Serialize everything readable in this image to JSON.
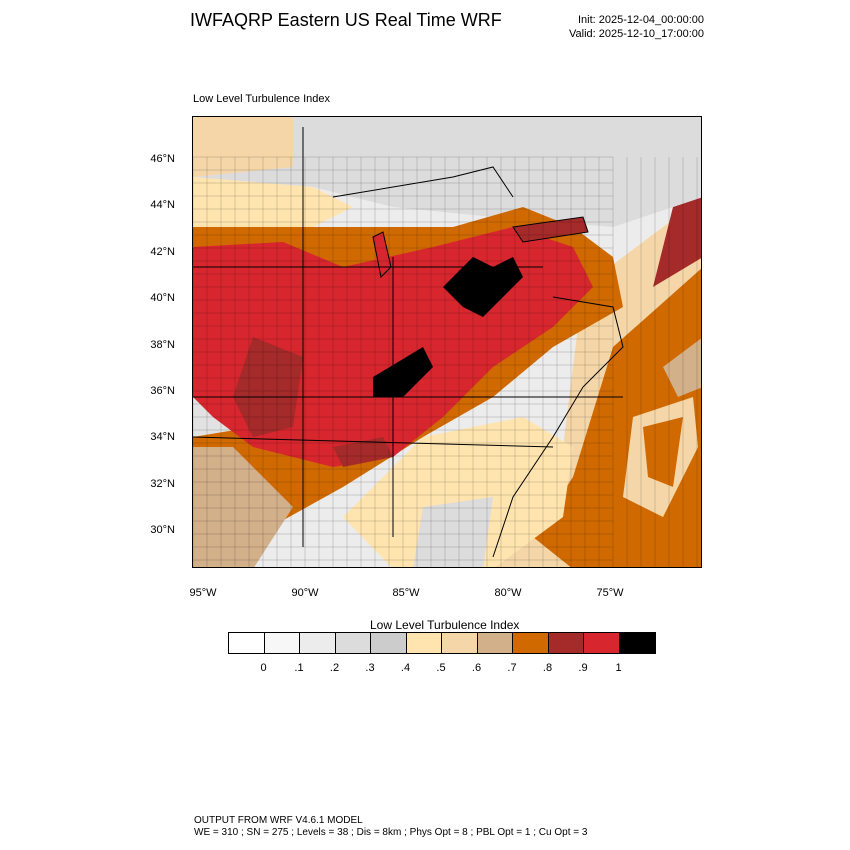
{
  "header": {
    "title": "IWFAQRP Eastern US Real Time WRF",
    "init": "Init: 2025-12-04_00:00:00",
    "valid": "Valid: 2025-12-10_17:00:00"
  },
  "panel": {
    "title": "Low Level Turbulence Index"
  },
  "map": {
    "lat_labels": [
      "46°N",
      "44°N",
      "42°N",
      "40°N",
      "38°N",
      "36°N",
      "34°N",
      "32°N",
      "30°N"
    ],
    "lon_labels": [
      "95°W",
      "90°W",
      "85°W",
      "80°W",
      "75°W"
    ],
    "field": "Low Level Turbulence Index",
    "level_colors": [
      "#ffffff",
      "#f7f7f7",
      "#ececec",
      "#dcdcdc",
      "#cccccc",
      "#ffe4b0",
      "#f5d6a8",
      "#d2b08a",
      "#d06a00",
      "#a52a2a",
      "#d7262e",
      "#000000"
    ]
  },
  "colorbar": {
    "title": "Low Level Turbulence Index",
    "colors": [
      "#ffffff",
      "#f7f7f7",
      "#ececec",
      "#dcdcdc",
      "#cccccc",
      "#ffe4b0",
      "#f5d6a8",
      "#d2b08a",
      "#d06a00",
      "#a52a2a",
      "#d7262e",
      "#000000"
    ],
    "ticks": [
      "0",
      ".1",
      ".2",
      ".3",
      ".4",
      ".5",
      ".6",
      ".7",
      ".8",
      ".9",
      "1"
    ]
  },
  "footer": {
    "line1": "OUTPUT FROM WRF V4.6.1 MODEL",
    "line2": "WE = 310 ; SN = 275 ; Levels = 38 ; Dis = 8km ; Phys Opt = 8 ; PBL Opt = 1 ; Cu Opt = 3"
  }
}
